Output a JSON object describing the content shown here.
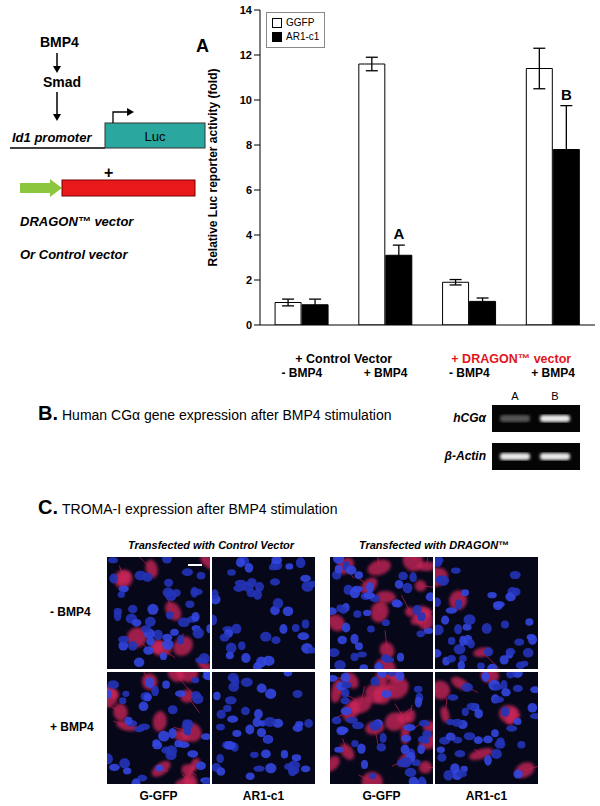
{
  "panel_a": {
    "label": "A",
    "diagram": {
      "stimulus": "BMP4",
      "mediator": "Smad",
      "promoter": "Id1 promoter",
      "reporter": "Luc",
      "plus": "+",
      "vector": "DRAGON™ vector",
      "alternative": "Or Control vector"
    }
  },
  "chart_data": {
    "type": "bar",
    "y_label": "Relative Luc reporter activity (fold)",
    "categories": [
      "- BMP4",
      "+ BMP4",
      "- BMP4",
      "+ BMP4"
    ],
    "group_labels": [
      "+ Control Vector",
      "+ DRAGON™ vector"
    ],
    "series": [
      {
        "name": "GGFP",
        "color": "#ffffff",
        "values": [
          1.0,
          11.6,
          1.9,
          11.4
        ],
        "errors": [
          0.15,
          0.3,
          0.12,
          0.9
        ]
      },
      {
        "name": "AR1-c1",
        "color": "#000000",
        "values": [
          0.9,
          3.1,
          1.05,
          7.8
        ],
        "errors": [
          0.25,
          0.45,
          0.15,
          1.95
        ]
      }
    ],
    "ylim": [
      0,
      14
    ],
    "yticks": [
      0,
      2,
      4,
      6,
      8,
      10,
      12,
      14
    ],
    "legend": "upper left",
    "annotations": [
      {
        "text": "A",
        "category_index": 1,
        "series": "AR1-c1"
      },
      {
        "text": "B",
        "category_index": 3,
        "series": "AR1-c1"
      }
    ]
  },
  "panel_b": {
    "label": "B.",
    "title": "Human CGα gene expression after BMP4 stimulation",
    "lanes": [
      "A",
      "B"
    ],
    "rows": [
      "hCGα",
      "β-Actin"
    ]
  },
  "panel_c": {
    "label": "C.",
    "title": "TROMA-I expression after BMP4 stimulation",
    "column_groups": [
      "Transfected with Control Vector",
      "Transfected with DRAGON™"
    ],
    "rows": [
      "- BMP4",
      "+ BMP4"
    ],
    "columns": [
      "G-GFP",
      "AR1-c1"
    ]
  }
}
